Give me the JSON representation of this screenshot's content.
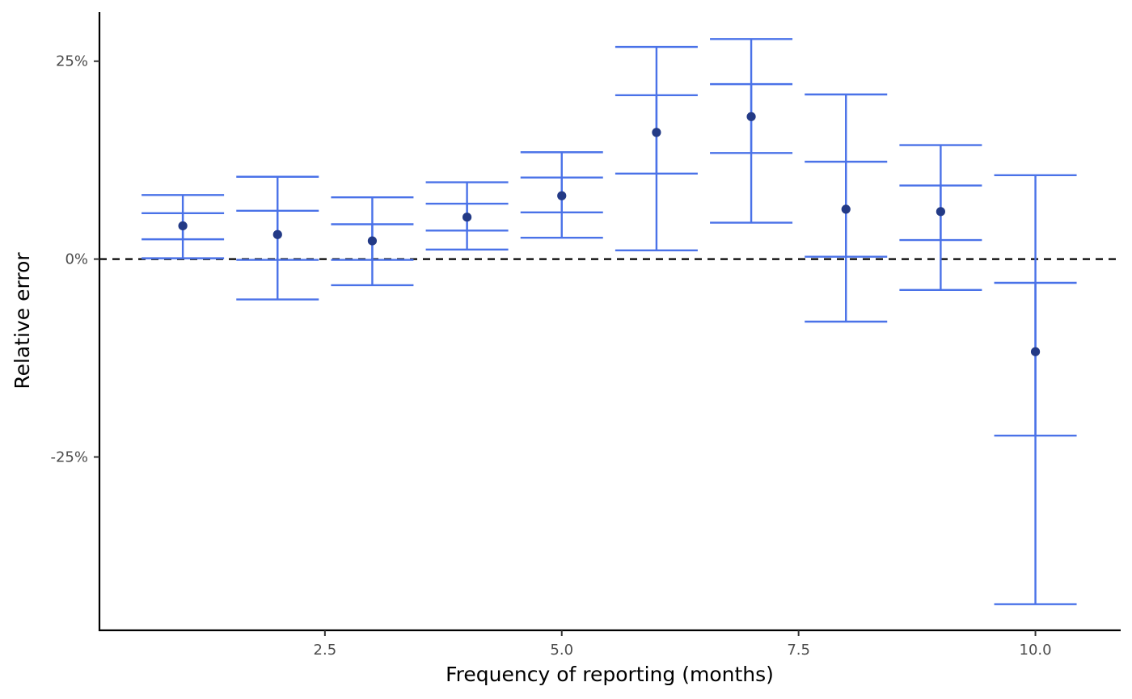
{
  "chart_data": {
    "type": "scatter",
    "xlabel": "Frequency of reporting (months)",
    "ylabel": "Relative error",
    "xlim": [
      0.12,
      10.9
    ],
    "ylim": [
      -46.9,
      31.2
    ],
    "x_ticks": [
      2.5,
      5.0,
      7.5,
      10.0
    ],
    "x_tick_labels": [
      "2.5",
      "5.0",
      "7.5",
      "10.0"
    ],
    "y_ticks": [
      -25,
      0,
      25
    ],
    "y_tick_labels": [
      "-25%",
      "0%",
      "25%"
    ],
    "reference_line": {
      "y": 0,
      "style": "dashed",
      "color": "#000000"
    },
    "grid": false,
    "errorbar_color": "#4a72e8",
    "point_color": "#233a86",
    "points": [
      {
        "x": 1,
        "estimate": 4.2,
        "bars": [
          [
            0.1,
            8.1
          ],
          [
            2.5,
            5.8
          ]
        ]
      },
      {
        "x": 2,
        "estimate": 3.1,
        "bars": [
          [
            -5.1,
            10.4
          ],
          [
            -0.1,
            6.1
          ]
        ]
      },
      {
        "x": 3,
        "estimate": 2.3,
        "bars": [
          [
            -3.3,
            7.8
          ],
          [
            -0.1,
            4.4
          ]
        ]
      },
      {
        "x": 4,
        "estimate": 5.3,
        "bars": [
          [
            1.2,
            9.7
          ],
          [
            3.6,
            7.0
          ]
        ]
      },
      {
        "x": 5,
        "estimate": 8.0,
        "bars": [
          [
            2.7,
            13.5
          ],
          [
            5.9,
            10.3
          ]
        ]
      },
      {
        "x": 6,
        "estimate": 16.0,
        "bars": [
          [
            1.1,
            26.8
          ],
          [
            10.8,
            20.7
          ]
        ]
      },
      {
        "x": 7,
        "estimate": 18.0,
        "bars": [
          [
            4.6,
            27.8
          ],
          [
            13.4,
            22.1
          ]
        ]
      },
      {
        "x": 8,
        "estimate": 6.3,
        "bars": [
          [
            -7.9,
            20.8
          ],
          [
            0.3,
            12.3
          ]
        ]
      },
      {
        "x": 9,
        "estimate": 6.0,
        "bars": [
          [
            -3.9,
            14.4
          ],
          [
            2.4,
            9.3
          ]
        ]
      },
      {
        "x": 10,
        "estimate": -11.7,
        "bars": [
          [
            -43.6,
            10.6
          ],
          [
            -22.3,
            -3.0
          ]
        ]
      }
    ]
  }
}
